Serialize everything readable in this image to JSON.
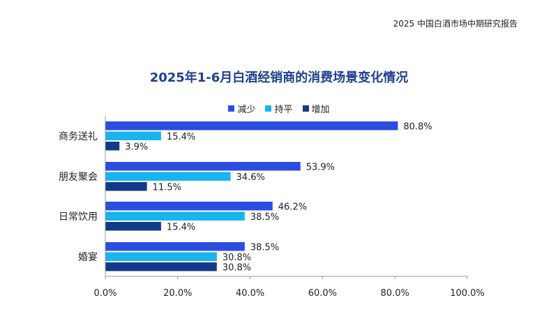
{
  "header": {
    "report_title": "2025 中国白酒市场中期研究报告"
  },
  "chart_data": {
    "type": "bar",
    "orientation": "horizontal",
    "title": "2025年1-6月白酒经销商的消费场景变化情况",
    "categories": [
      "商务送礼",
      "朋友聚会",
      "日常饮用",
      "婚宴"
    ],
    "series": [
      {
        "name": "减少",
        "color": "#2b4de0",
        "values": [
          80.8,
          53.9,
          46.2,
          38.5
        ],
        "labels": [
          "80.8%",
          "53.9%",
          "46.2%",
          "38.5%"
        ]
      },
      {
        "name": "持平",
        "color": "#17b4ee",
        "values": [
          15.4,
          34.6,
          38.5,
          30.8
        ],
        "labels": [
          "15.4%",
          "34.6%",
          "38.5%",
          "30.8%"
        ]
      },
      {
        "name": "增加",
        "color": "#123a8a",
        "values": [
          3.9,
          11.5,
          15.4,
          30.8
        ],
        "labels": [
          "3.9%",
          "11.5%",
          "15.4%",
          "30.8%"
        ]
      }
    ],
    "xlim": [
      0,
      100
    ],
    "xticks": [
      "0.0%",
      "20.0%",
      "40.0%",
      "60.0%",
      "80.0%",
      "100.0%"
    ],
    "grid": false,
    "legend_position": "top-center"
  }
}
